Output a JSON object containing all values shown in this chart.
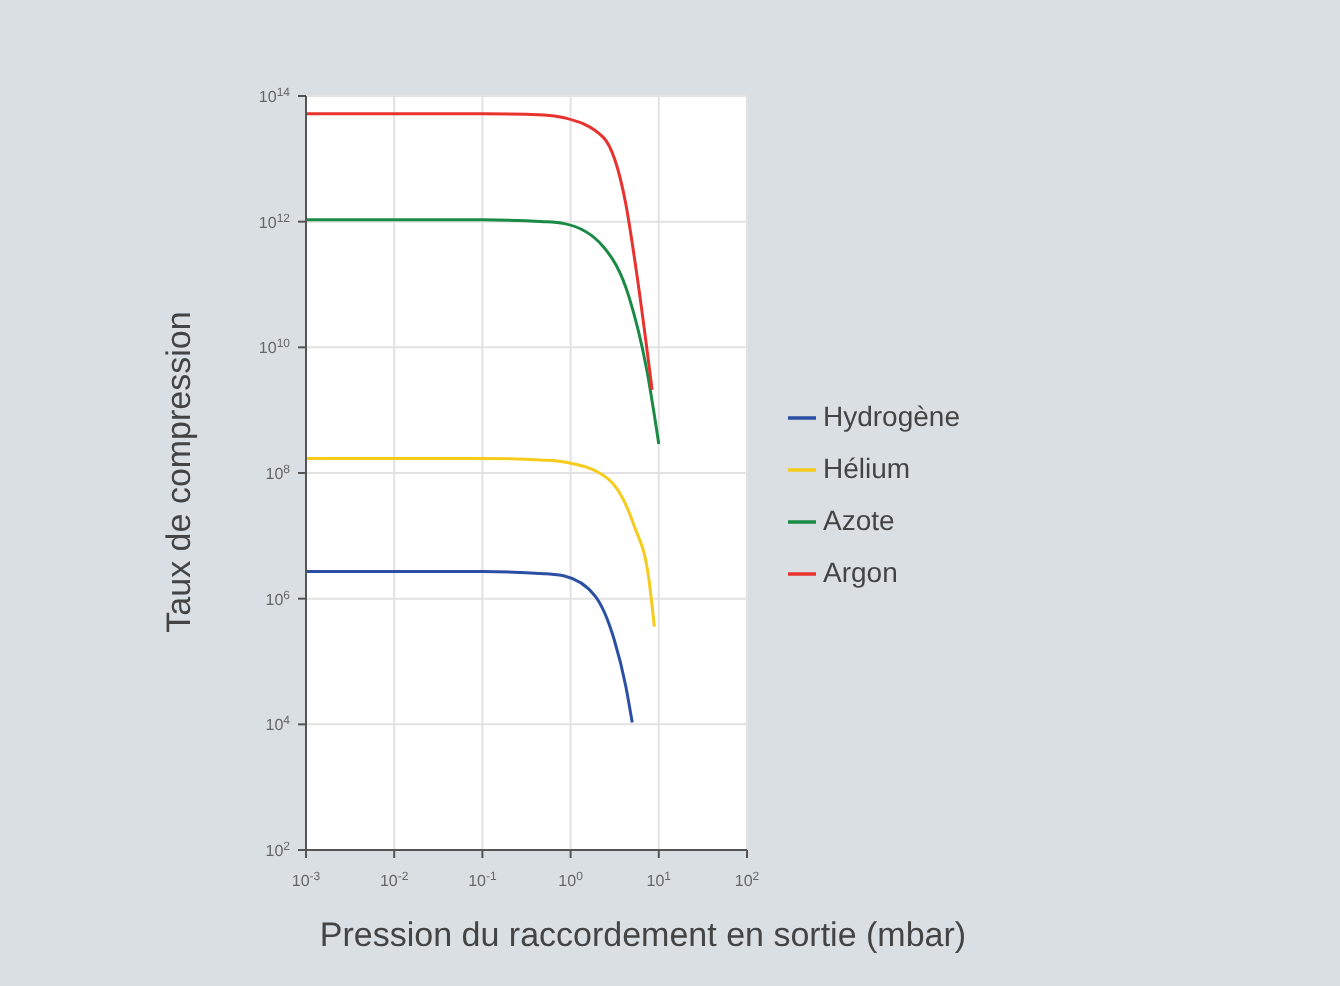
{
  "chart_data": {
    "type": "line",
    "xlabel": "Pression du raccordement en sortie (mbar)",
    "ylabel": "Taux de compression",
    "log": "xy",
    "grid": true,
    "legend": "right",
    "xlim": [
      0.001,
      100
    ],
    "ylim": [
      100,
      100000000000000
    ],
    "xticks": [
      {
        "value": 0.001,
        "label": "10$^{-3}$"
      },
      {
        "value": 0.01,
        "label": "10$^{-2}$"
      },
      {
        "value": 0.1,
        "label": "10$^{-1}$"
      },
      {
        "value": 1,
        "label": "10$^{0}$"
      },
      {
        "value": 10,
        "label": "10$^{1}$"
      },
      {
        "value": 100,
        "label": "10$^{2}$"
      }
    ],
    "yticks": [
      {
        "value": 100,
        "label": "10$^{2}$"
      },
      {
        "value": 10000,
        "label": "10$^{4}$"
      },
      {
        "value": 1000000,
        "label": "10$^{6}$"
      },
      {
        "value": 100000000,
        "label": "10$^{8}$"
      },
      {
        "value": 10000000000,
        "label": "10$^{10}$"
      },
      {
        "value": 1000000000000,
        "label": "10$^{12}$"
      },
      {
        "value": 100000000000000,
        "label": "10$^{14}$"
      }
    ],
    "series": [
      {
        "name": "Hydrogène",
        "color": "#2a4fa3",
        "x": [
          0.001,
          0.1,
          0.5,
          0.85,
          1.9,
          3.1,
          4.2,
          5.0
        ],
        "values": [
          2700000,
          2700000,
          2500000,
          2300000,
          1100000,
          230000,
          42000,
          10700
        ]
      },
      {
        "name": "Hélium",
        "color": "#f5cc1b",
        "x": [
          0.001,
          0.1,
          0.5,
          0.85,
          2.6,
          5.2,
          7.7,
          8.9
        ],
        "values": [
          170000000,
          170000000,
          160000000,
          150000000,
          83000000,
          15000000,
          2100000,
          360000
        ]
      },
      {
        "name": "Azote",
        "color": "#1a8a45",
        "x": [
          0.001,
          0.1,
          0.5,
          0.85,
          2.35,
          4.6,
          7.3,
          10
        ],
        "values": [
          1070000000000,
          1070000000000,
          1000000000000,
          930000000000,
          400000000000,
          63000000000,
          4400000000,
          290000000
        ]
      },
      {
        "name": "Argon",
        "color": "#e8322e",
        "x": [
          0.001,
          0.1,
          0.5,
          0.85,
          2.35,
          4.2,
          5.7,
          8.4
        ],
        "values": [
          52000000000000,
          52000000000000,
          50000000000000,
          45000000000000,
          22000000000000,
          2000000000000,
          130000000000,
          2100000000
        ]
      }
    ]
  }
}
